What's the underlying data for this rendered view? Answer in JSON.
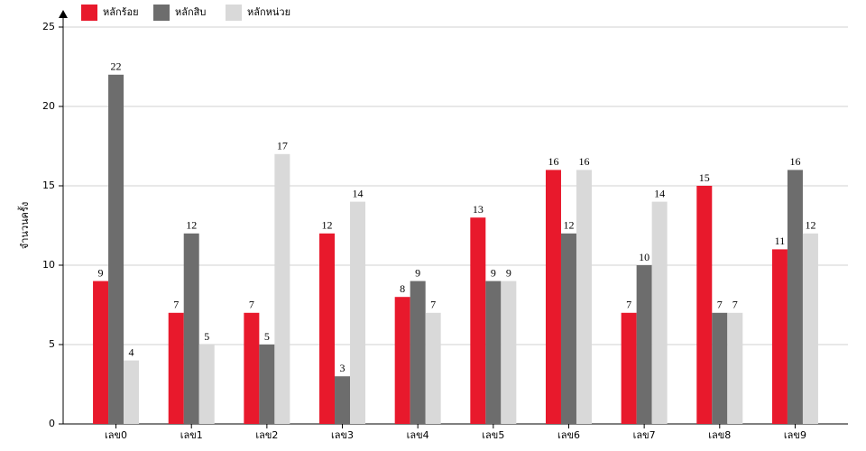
{
  "chart_data": {
    "type": "bar",
    "y_label": "จำนวนครั้ง",
    "categories": [
      "เลข0",
      "เลข1",
      "เลข2",
      "เลข3",
      "เลข4",
      "เลข5",
      "เลข6",
      "เลข7",
      "เลข8",
      "เลข9"
    ],
    "series": [
      {
        "name": "หลักร้อย",
        "color": "#e8192c",
        "values": [
          9,
          7,
          7,
          12,
          8,
          13,
          16,
          7,
          15,
          11
        ]
      },
      {
        "name": "หลักสิบ",
        "color": "#6d6d6d",
        "values": [
          22,
          12,
          5,
          3,
          9,
          9,
          12,
          10,
          7,
          16
        ]
      },
      {
        "name": "หลักหน่วย",
        "color": "#d9d9d9",
        "values": [
          4,
          5,
          17,
          14,
          7,
          9,
          16,
          14,
          7,
          12
        ]
      }
    ],
    "ylim": [
      0,
      25
    ],
    "yticks": [
      0,
      5,
      10,
      15,
      20,
      25
    ],
    "grid": true
  }
}
